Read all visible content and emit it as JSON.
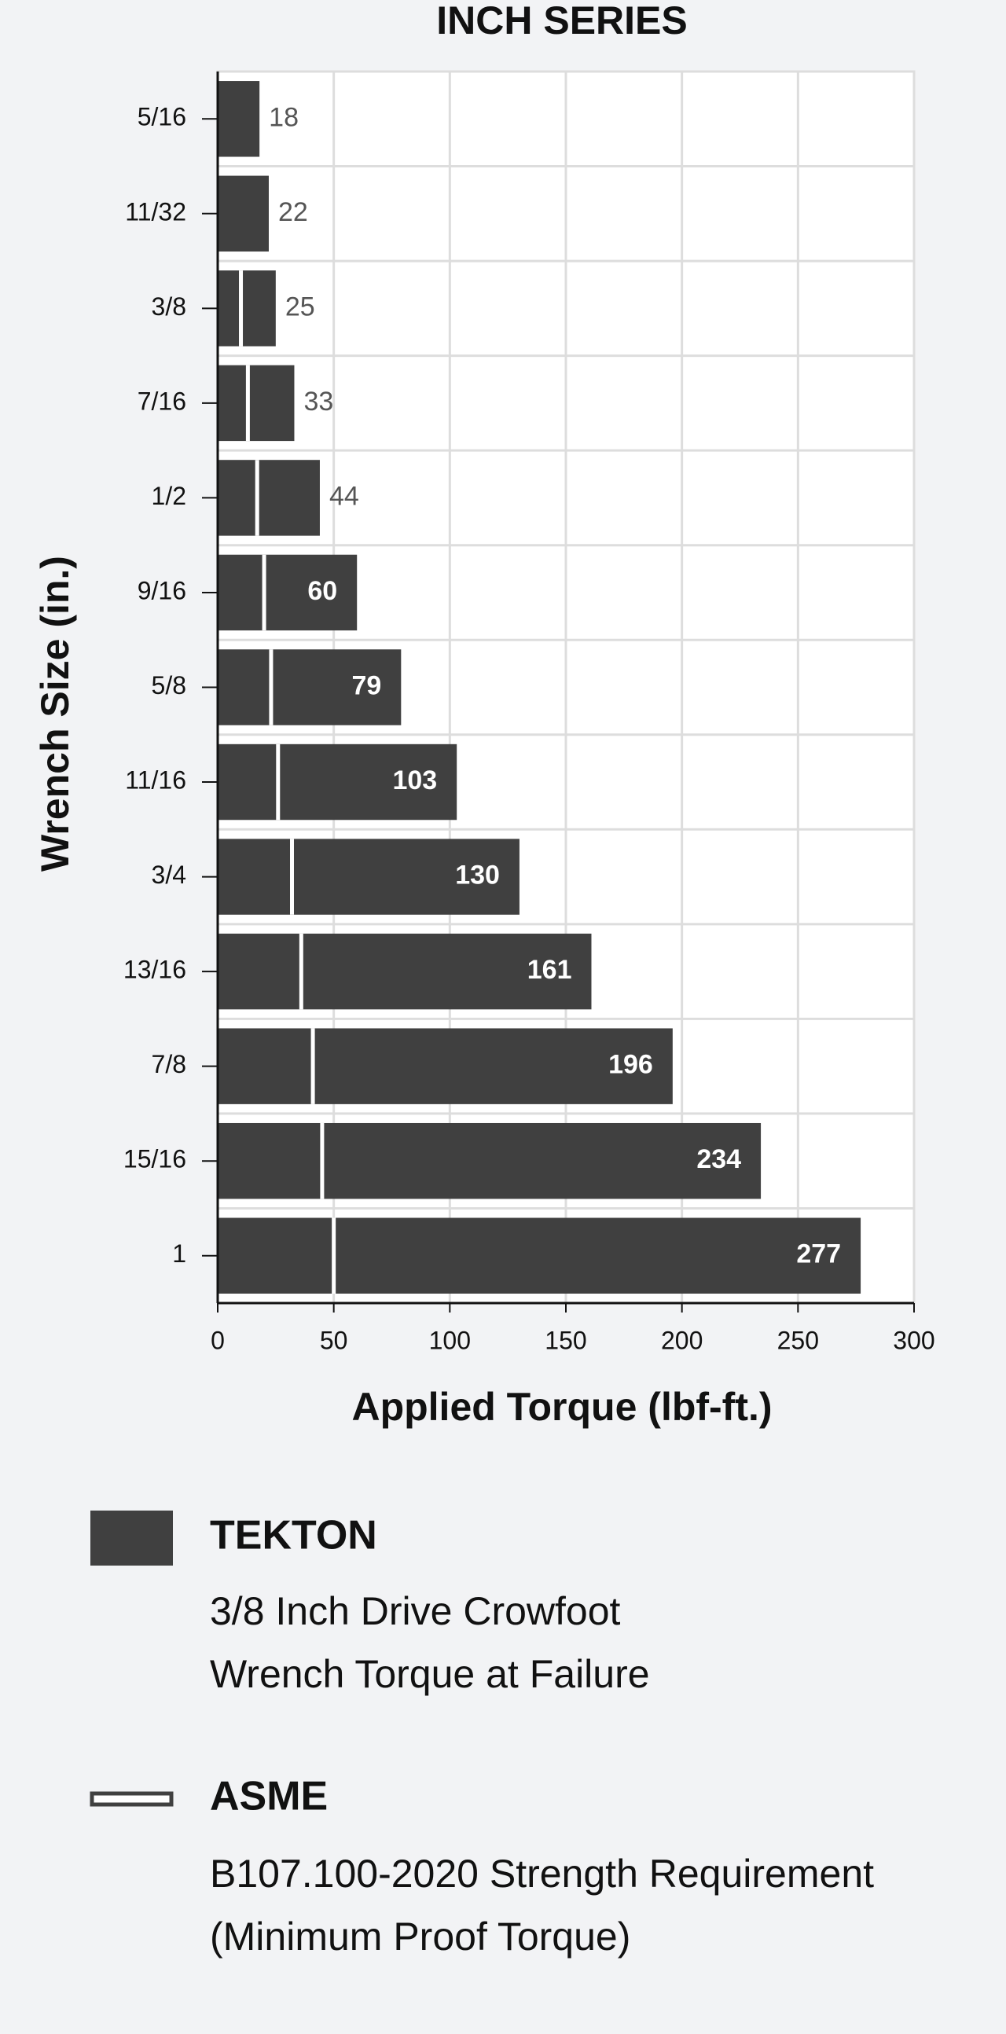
{
  "chart_data": {
    "type": "bar",
    "orientation": "horizontal",
    "title": "INCH SERIES",
    "x_label": "Applied Torque (lbf-ft.)",
    "y_label": "Wrench Size (in.)",
    "categories": [
      "5/16",
      "11/32",
      "3/8",
      "7/16",
      "1/2",
      "9/16",
      "5/8",
      "11/16",
      "3/4",
      "13/16",
      "7/8",
      "15/16",
      "1"
    ],
    "series": [
      {
        "name": "TEKTON",
        "color": "#404040",
        "description": [
          "3/8 Inch Drive Crowfoot",
          "Wrench Torque at Failure"
        ],
        "values": [
          18,
          22,
          25,
          33,
          44,
          60,
          79,
          103,
          130,
          161,
          196,
          234,
          277
        ]
      },
      {
        "name": "ASME",
        "color": "#ffffff",
        "description": [
          "B107.100-2020 Strength Requirement",
          "(Minimum Proof Torque)"
        ],
        "values": [
          null,
          null,
          10,
          13,
          17,
          20,
          23,
          26,
          32,
          36,
          41,
          45,
          50
        ]
      }
    ],
    "xlim": [
      0,
      300
    ],
    "xticks": [
      0,
      50,
      100,
      150,
      200,
      250,
      300
    ],
    "grid": true
  }
}
